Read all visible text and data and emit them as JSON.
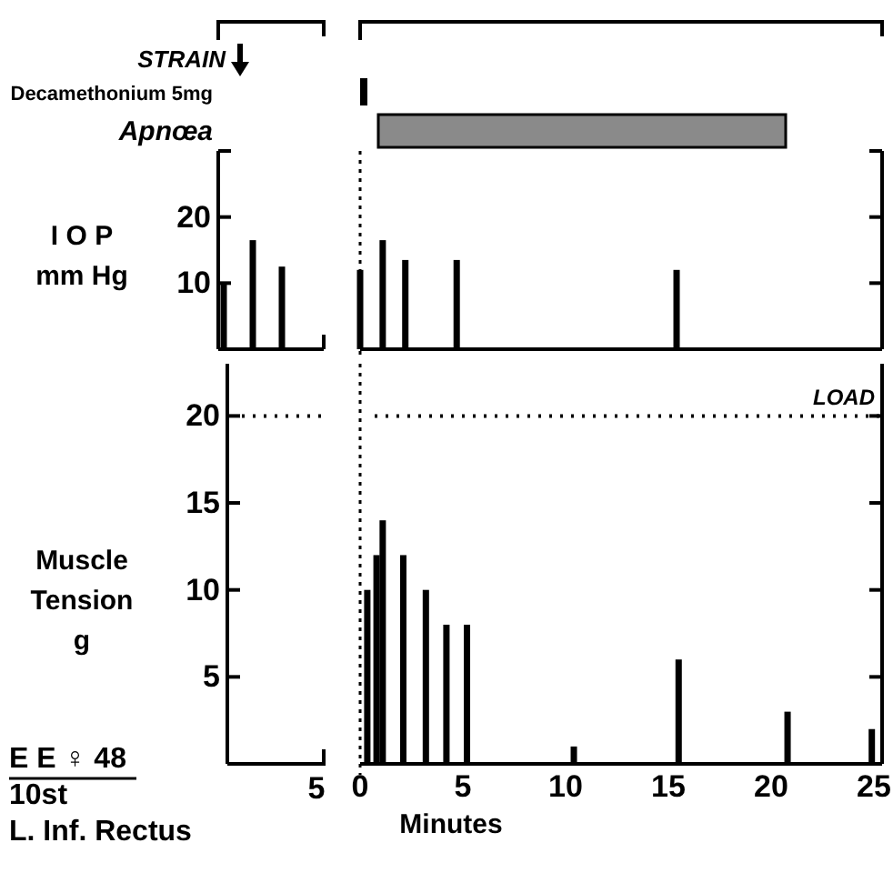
{
  "chart_data": [
    {
      "type": "bar",
      "ylabel": "I O P\nmm Hg",
      "categories": [
        null,
        null,
        null
      ],
      "values": [
        10,
        16.5,
        12.5
      ],
      "color": "#000000",
      "ylim": [
        0,
        30
      ],
      "yticks": [
        10,
        20,
        {
          "value": 30,
          "label": null
        }
      ],
      "annotations": [
        "STRAIN"
      ]
    },
    {
      "type": "bar",
      "x": [
        0,
        1.1,
        2.2,
        4.7,
        15.4
      ],
      "values": [
        12,
        16.5,
        13.5,
        13.5,
        12
      ],
      "color": "#000000",
      "xlim": [
        0,
        25.4
      ],
      "xticks": [
        0,
        5,
        10,
        15,
        20,
        25
      ],
      "ylim": [
        0,
        30
      ],
      "yticks": [
        {
          "value": 10,
          "label": null
        },
        {
          "value": 20,
          "label": null
        },
        {
          "value": 30,
          "label": null
        }
      ],
      "tick_labels": false,
      "ref_lines": [
        {
          "axis": "x",
          "value": 0,
          "label": null
        }
      ],
      "annotations": [
        "Decamethonium 5mg",
        "Apnœa"
      ]
    },
    {
      "type": "bar",
      "ylabel": "Muscle\nTension\ng",
      "xlabel": "Minutes",
      "x": [
        0.35,
        0.8,
        1.1,
        2.1,
        3.2,
        4.2,
        5.2,
        10.4,
        15.5,
        20.8,
        24.9
      ],
      "values": [
        10,
        12,
        14,
        12,
        10,
        8,
        8,
        1,
        6,
        3,
        2
      ],
      "color": "#000000",
      "xlim": [
        0,
        25.4
      ],
      "ylim": [
        0,
        23
      ],
      "xticks": [
        0,
        5,
        10,
        15,
        20,
        25
      ],
      "yticks": [
        5,
        10,
        15,
        20
      ],
      "ref_lines": [
        {
          "axis": "x",
          "value": 0,
          "label": null
        },
        {
          "axis": "y",
          "value": 20,
          "label": "LOAD"
        }
      ],
      "annotations": [
        "5",
        "E E ♀ 48",
        "10st",
        "L. Inf. Rectus"
      ]
    }
  ]
}
